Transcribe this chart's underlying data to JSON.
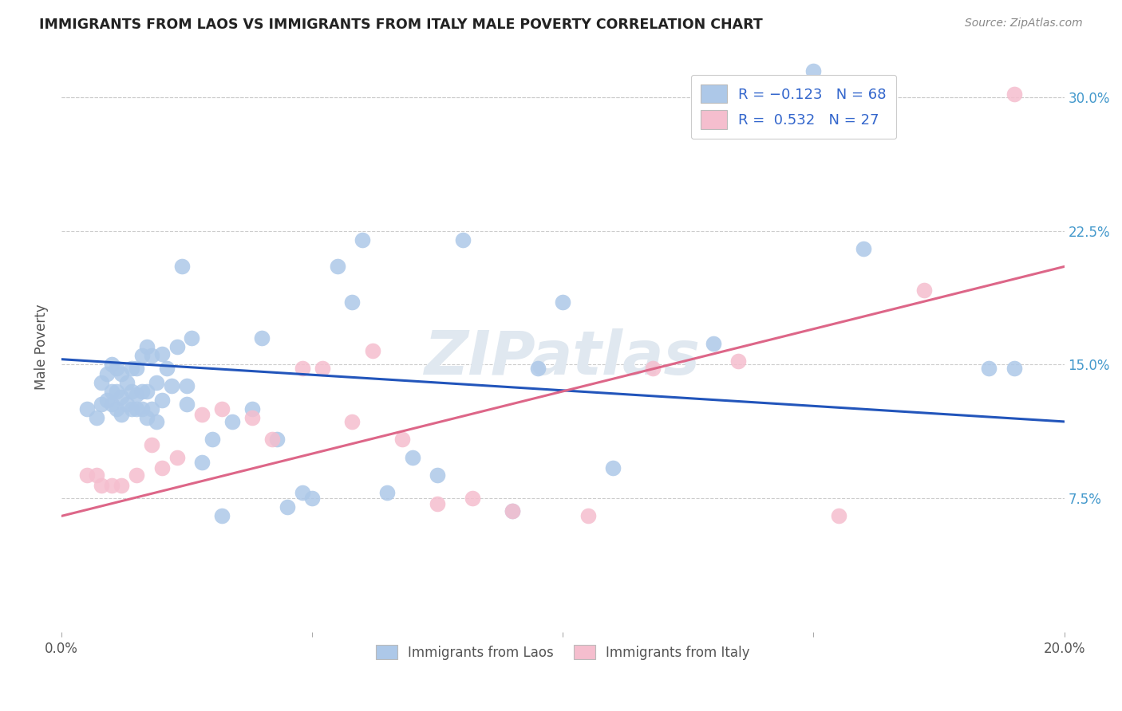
{
  "title": "IMMIGRANTS FROM LAOS VS IMMIGRANTS FROM ITALY MALE POVERTY CORRELATION CHART",
  "source": "Source: ZipAtlas.com",
  "ylabel": "Male Poverty",
  "right_yticks": [
    "7.5%",
    "15.0%",
    "22.5%",
    "30.0%"
  ],
  "right_ytick_vals": [
    0.075,
    0.15,
    0.225,
    0.3
  ],
  "xlim": [
    0.0,
    0.2
  ],
  "ylim": [
    0.0,
    0.32
  ],
  "laos_color": "#adc8e8",
  "italy_color": "#f5bece",
  "laos_line_color": "#2255bb",
  "italy_line_color": "#dd6688",
  "background_color": "#ffffff",
  "grid_color": "#cccccc",
  "laos_line_x0": 0.0,
  "laos_line_y0": 0.153,
  "laos_line_x1": 0.2,
  "laos_line_y1": 0.118,
  "italy_line_x0": 0.0,
  "italy_line_y0": 0.065,
  "italy_line_x1": 0.2,
  "italy_line_y1": 0.205,
  "laos_x": [
    0.005,
    0.007,
    0.008,
    0.008,
    0.009,
    0.009,
    0.01,
    0.01,
    0.01,
    0.011,
    0.011,
    0.011,
    0.012,
    0.012,
    0.012,
    0.013,
    0.013,
    0.014,
    0.014,
    0.014,
    0.015,
    0.015,
    0.015,
    0.016,
    0.016,
    0.016,
    0.017,
    0.017,
    0.017,
    0.018,
    0.018,
    0.019,
    0.019,
    0.02,
    0.02,
    0.021,
    0.022,
    0.023,
    0.024,
    0.025,
    0.025,
    0.026,
    0.028,
    0.03,
    0.032,
    0.034,
    0.038,
    0.04,
    0.043,
    0.045,
    0.048,
    0.05,
    0.055,
    0.058,
    0.06,
    0.065,
    0.07,
    0.075,
    0.08,
    0.09,
    0.095,
    0.1,
    0.11,
    0.13,
    0.15,
    0.16,
    0.185,
    0.19
  ],
  "laos_y": [
    0.125,
    0.12,
    0.128,
    0.14,
    0.13,
    0.145,
    0.128,
    0.135,
    0.15,
    0.125,
    0.135,
    0.148,
    0.122,
    0.132,
    0.145,
    0.128,
    0.14,
    0.125,
    0.135,
    0.148,
    0.125,
    0.133,
    0.148,
    0.125,
    0.135,
    0.155,
    0.12,
    0.135,
    0.16,
    0.125,
    0.155,
    0.118,
    0.14,
    0.13,
    0.156,
    0.148,
    0.138,
    0.16,
    0.205,
    0.128,
    0.138,
    0.165,
    0.095,
    0.108,
    0.065,
    0.118,
    0.125,
    0.165,
    0.108,
    0.07,
    0.078,
    0.075,
    0.205,
    0.185,
    0.22,
    0.078,
    0.098,
    0.088,
    0.22,
    0.068,
    0.148,
    0.185,
    0.092,
    0.162,
    0.315,
    0.215,
    0.148,
    0.148
  ],
  "italy_x": [
    0.005,
    0.007,
    0.008,
    0.01,
    0.012,
    0.015,
    0.018,
    0.02,
    0.023,
    0.028,
    0.032,
    0.038,
    0.042,
    0.048,
    0.052,
    0.058,
    0.062,
    0.068,
    0.075,
    0.082,
    0.09,
    0.105,
    0.118,
    0.135,
    0.155,
    0.172,
    0.19
  ],
  "italy_y": [
    0.088,
    0.088,
    0.082,
    0.082,
    0.082,
    0.088,
    0.105,
    0.092,
    0.098,
    0.122,
    0.125,
    0.12,
    0.108,
    0.148,
    0.148,
    0.118,
    0.158,
    0.108,
    0.072,
    0.075,
    0.068,
    0.065,
    0.148,
    0.152,
    0.065,
    0.192,
    0.302
  ]
}
